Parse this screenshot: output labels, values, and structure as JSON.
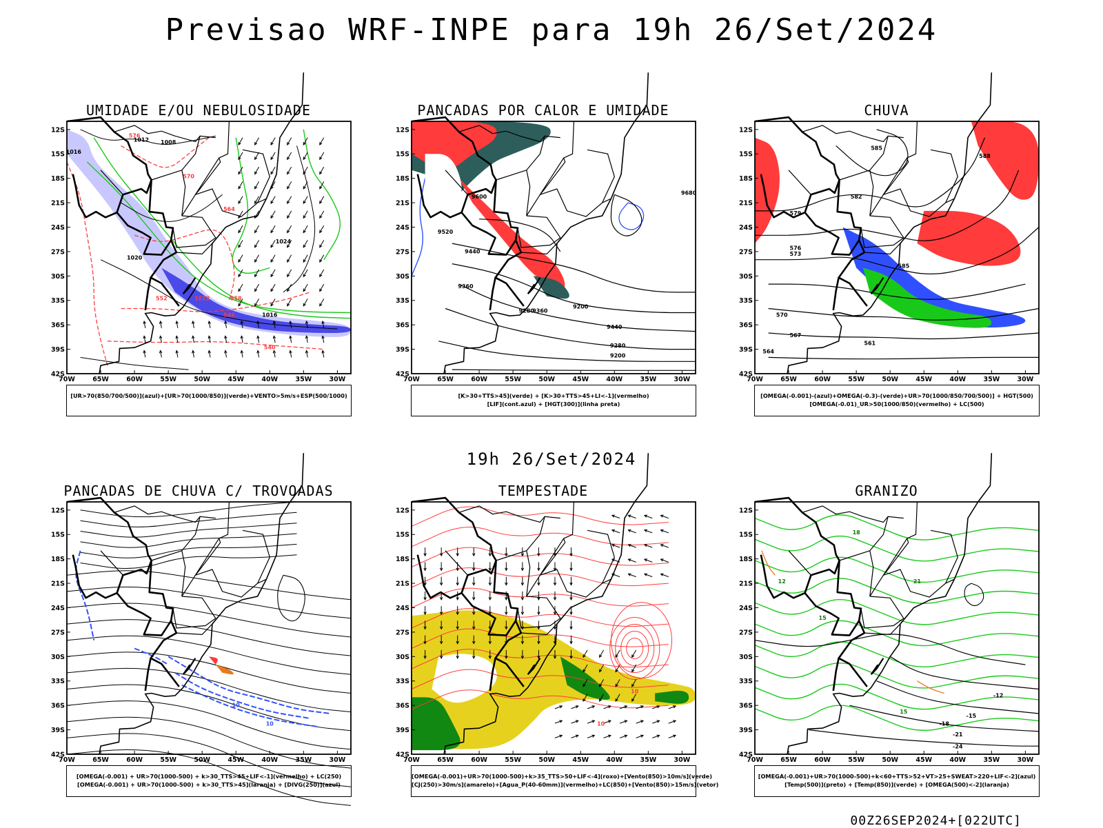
{
  "title": "Previsao WRF-INPE  para 19h 26/Set/2024",
  "mid_title": "19h 26/Set/2024",
  "stamp": "00Z26SEP2024+[022UTC]",
  "axes": {
    "lat_labels": [
      "12S",
      "15S",
      "18S",
      "21S",
      "24S",
      "27S",
      "30S",
      "33S",
      "36S",
      "39S",
      "42S"
    ],
    "lon_labels": [
      "70W",
      "65W",
      "60W",
      "55W",
      "50W",
      "45W",
      "40W",
      "35W",
      "30W"
    ]
  },
  "colors": {
    "red": "#ff3b3b",
    "green": "#19c919",
    "blue": "#3050ff",
    "yellow": "#e6d21e",
    "orange": "#e87a1c",
    "teal": "#2e5e5c",
    "darkgreen": "#118811"
  },
  "panels": [
    {
      "title": "UMIDADE E/OU NEBULOSIDADE",
      "caption": [
        "[UR>70(850/700/500)](azul)+[UR>70(1000/850)](verde)+VENTO>5m/s+ESP(500/1000)"
      ],
      "labels": [
        "1012",
        "1008",
        "1016",
        "1020",
        "1024",
        "1016",
        "1012",
        "576",
        "570",
        "564",
        "558",
        "552",
        "546",
        "540"
      ]
    },
    {
      "title": "PANCADAS POR CALOR E UMIDADE",
      "caption": [
        "[K>30+TTS>45](verde) + [K>30+TTS>45+LI<-1](vermelho)",
        "[LIF](cont.azul) + [HGT(300)](linha preta)"
      ],
      "labels": [
        "9600",
        "9520",
        "9440",
        "9360",
        "9280",
        "9200",
        "9680",
        "9440",
        "9280",
        "9200",
        "9360"
      ]
    },
    {
      "title": "CHUVA",
      "caption": [
        "[OMEGA(-0.001)-(azul)+OMEGA(-0.3)-(verde)+UR>70(1000/850/700/500)] + HGT(500)",
        "[OMEGA(-0.01)_UR>50(1000/850)(vermelho) + LC(500)"
      ],
      "labels": [
        "588",
        "585",
        "582",
        "579",
        "576",
        "573",
        "570",
        "567",
        "564",
        "561",
        "585"
      ]
    },
    {
      "title": "PANCADAS DE CHUVA C/ TROVOADAS",
      "caption": [
        "[OMEGA(-0.001) + UR>70(1000-500) + k>30_TTS>45+LIF<-1](vermelho) + LC(250)",
        "[OMEGA(-0.001) + UR>70(1000-500) + k>30_TTS>45](laranja) + [DIVG(250)](azul)"
      ],
      "labels": [
        "10",
        "10"
      ]
    },
    {
      "title": "TEMPESTADE",
      "caption": [
        "[OMEGA(-0.001)+UR>70(1000-500)+k>35_TTS>50+LIF<-4](roxo)+[Vento(850)>10m/s](verde)",
        "[CJ(250)>30m/s](amarelo)+[Agua_P(40-60mm)](vermelho)+LC(850)+[Vento(850)>15m/s](vetor)"
      ],
      "labels": [
        "10",
        "10"
      ]
    },
    {
      "title": "GRANIZO",
      "caption": [
        "[OMEGA(-0.001)+UR>70(1000-500)+k<60+TTS>52+VT>25+SWEAT>220+LIF<-2](azul)",
        "[Temp(500)](preto) + [Temp(850)](verde) + [OMEGA(500)<-2](laranja)"
      ],
      "labels": [
        "-12",
        "-15",
        "-18",
        "-21",
        "-24",
        "12",
        "15",
        "18",
        "21",
        "15"
      ]
    }
  ]
}
